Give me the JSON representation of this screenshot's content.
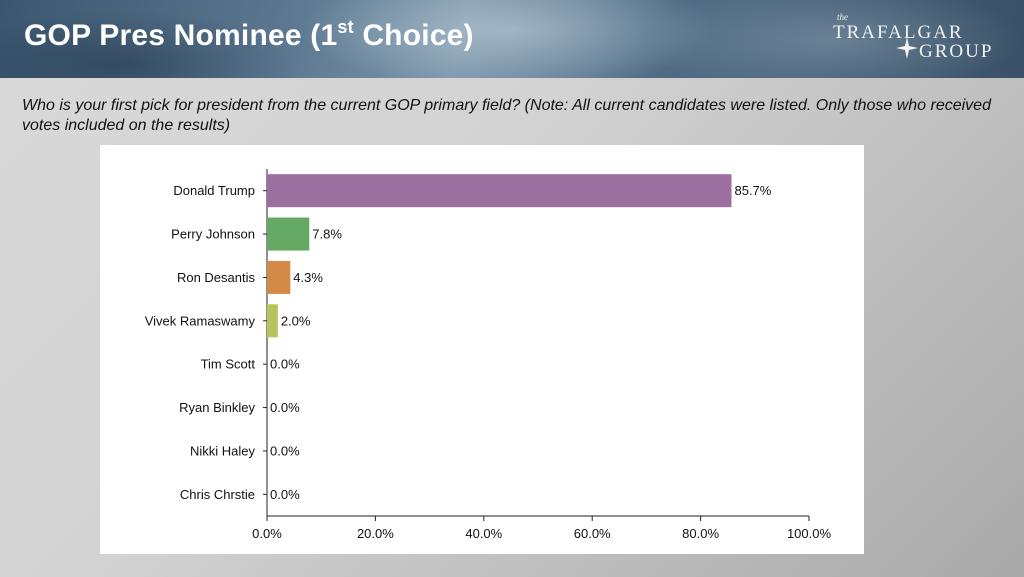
{
  "header": {
    "title_main": "GOP Pres Nominee (1",
    "title_sup": "st",
    "title_end": " Choice)",
    "logo_the": "the",
    "logo_line1": "TRAFALGAR",
    "logo_line2": "GROUP"
  },
  "question": "Who is your first pick for president from the current GOP primary field? (Note: All current candidates were listed. Only those who received votes included on the results)",
  "chart_data": {
    "type": "bar",
    "orientation": "horizontal",
    "title": "GOP Pres Nominee (1st Choice)",
    "categories": [
      "Donald Trump",
      "Perry Johnson",
      "Ron Desantis",
      "Vivek Ramaswamy",
      "Tim Scott",
      "Ryan Binkley",
      "Nikki Haley",
      "Chris Chrstie"
    ],
    "values": [
      85.7,
      7.8,
      4.3,
      2.0,
      0.0,
      0.0,
      0.0,
      0.0
    ],
    "value_labels": [
      "85.7%",
      "7.8%",
      "4.3%",
      "2.0%",
      "0.0%",
      "0.0%",
      "0.0%",
      "0.0%"
    ],
    "colors": [
      "#9b6fa0",
      "#64a964",
      "#d38a47",
      "#b8c45b",
      "#999999",
      "#999999",
      "#999999",
      "#999999"
    ],
    "xlim": [
      0,
      100
    ],
    "xticks": [
      0,
      20,
      40,
      60,
      80,
      100
    ],
    "xtick_labels": [
      "0.0%",
      "20.0%",
      "40.0%",
      "60.0%",
      "80.0%",
      "100.0%"
    ],
    "xlabel": "",
    "ylabel": ""
  }
}
